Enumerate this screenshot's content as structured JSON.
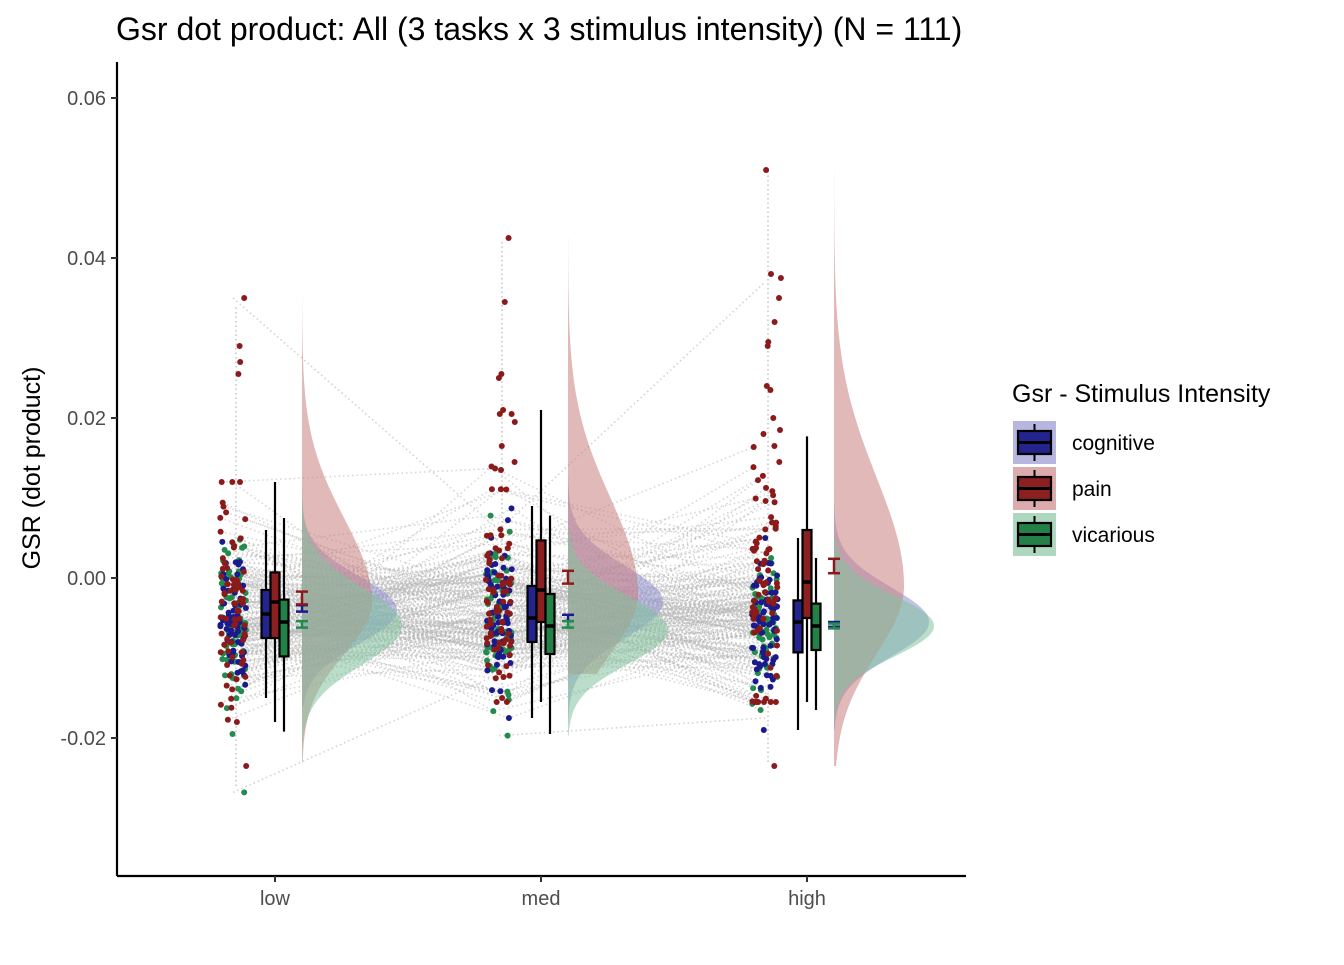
{
  "chart_data": {
    "type": "raincloud",
    "title": "Gsr dot product: All (3 tasks x 3 stimulus intensity) (N = 111)",
    "xlabel": "",
    "ylabel": "GSR  (dot product)",
    "ylim": [
      -0.037,
      0.065
    ],
    "yticks": [
      -0.02,
      0.0,
      0.02,
      0.04,
      0.06
    ],
    "ytick_labels": [
      "-0.02",
      "0.00",
      "0.02",
      "0.04",
      "0.06"
    ],
    "categories": [
      "low",
      "med",
      "high"
    ],
    "grid": false,
    "legend": {
      "title": "Gsr - Stimulus Intensity",
      "position": "right",
      "entries": [
        "cognitive",
        "pain",
        "vicarious"
      ]
    },
    "colors": {
      "cognitive": "#1a1a8c",
      "pain": "#8b1a1a",
      "vicarious": "#228b4e",
      "cognitive_fill": "#24248f",
      "pain_fill": "#8c1f1f",
      "vicarious_fill": "#238046",
      "cognitive_cloud": "#8f8fcf",
      "pain_cloud": "#c97f7f",
      "vicarious_cloud": "#82c29d",
      "subject_lines": "#b5b5b5"
    },
    "series": [
      {
        "name": "cognitive",
        "box": [
          {
            "category": "low",
            "min": -0.015,
            "q1": -0.0075,
            "median": -0.0045,
            "q3": -0.0015,
            "max": 0.006
          },
          {
            "category": "med",
            "min": -0.0175,
            "q1": -0.008,
            "median": -0.005,
            "q3": -0.001,
            "max": 0.009
          },
          {
            "category": "high",
            "min": -0.019,
            "q1": -0.0093,
            "median": -0.0055,
            "q3": -0.0028,
            "max": 0.005
          }
        ],
        "mean_se": [
          {
            "category": "low",
            "mean": -0.0038,
            "se": 0.0004
          },
          {
            "category": "med",
            "mean": -0.005,
            "se": 0.0004
          },
          {
            "category": "high",
            "mean": -0.0058,
            "se": 0.0003
          }
        ],
        "density_peak": [
          -0.004,
          -0.003,
          -0.0055
        ],
        "density_sd": [
          0.0042,
          0.0045,
          0.0043
        ],
        "range": [
          [
            -0.016,
            0.013
          ],
          [
            -0.018,
            0.013
          ],
          [
            -0.019,
            0.011
          ]
        ]
      },
      {
        "name": "pain",
        "box": [
          {
            "category": "low",
            "min": -0.018,
            "q1": -0.0075,
            "median": -0.003,
            "q3": 0.0007,
            "max": 0.012
          },
          {
            "category": "med",
            "min": -0.0155,
            "q1": -0.0055,
            "median": -0.0015,
            "q3": 0.0047,
            "max": 0.021
          },
          {
            "category": "high",
            "min": -0.0155,
            "q1": -0.005,
            "median": -0.0005,
            "q3": 0.006,
            "max": 0.0177
          }
        ],
        "mean_se": [
          {
            "category": "low",
            "mean": -0.0025,
            "se": 0.0008
          },
          {
            "category": "med",
            "mean": 0.0001,
            "se": 0.0008
          },
          {
            "category": "high",
            "mean": 0.0015,
            "se": 0.0009
          }
        ],
        "density_peak": [
          -0.003,
          -0.002,
          -0.001
        ],
        "density_sd": [
          0.0065,
          0.0075,
          0.0085
        ],
        "range": [
          [
            -0.023,
            0.035
          ],
          [
            -0.012,
            0.0425
          ],
          [
            -0.0235,
            0.051
          ]
        ]
      },
      {
        "name": "vicarious",
        "box": [
          {
            "category": "low",
            "min": -0.0192,
            "q1": -0.0098,
            "median": -0.0055,
            "q3": -0.0027,
            "max": 0.0075
          },
          {
            "category": "med",
            "min": -0.0195,
            "q1": -0.0095,
            "median": -0.006,
            "q3": -0.002,
            "max": 0.0078
          },
          {
            "category": "high",
            "min": -0.0165,
            "q1": -0.009,
            "median": -0.006,
            "q3": -0.0032,
            "max": 0.0025
          }
        ],
        "mean_se": [
          {
            "category": "low",
            "mean": -0.0058,
            "se": 0.0004
          },
          {
            "category": "med",
            "mean": -0.0058,
            "se": 0.0004
          },
          {
            "category": "high",
            "mean": -0.006,
            "se": 0.0003
          }
        ],
        "density_peak": [
          -0.006,
          -0.0065,
          -0.006
        ],
        "density_sd": [
          0.0048,
          0.0042,
          0.0038
        ],
        "range": [
          [
            -0.0268,
            0.012
          ],
          [
            -0.0197,
            0.006
          ],
          [
            -0.0175,
            0.005
          ]
        ]
      }
    ],
    "outlier_points": [
      {
        "category": "low",
        "series": "pain",
        "value": 0.035
      },
      {
        "category": "low",
        "series": "pain",
        "value": 0.029
      },
      {
        "category": "low",
        "series": "pain",
        "value": 0.027
      },
      {
        "category": "low",
        "series": "pain",
        "value": 0.0255
      },
      {
        "category": "low",
        "series": "pain",
        "value": 0.012
      },
      {
        "category": "low",
        "series": "pain",
        "value": -0.018
      },
      {
        "category": "low",
        "series": "pain",
        "value": -0.0235
      },
      {
        "category": "low",
        "series": "vicarious",
        "value": -0.0268
      },
      {
        "category": "low",
        "series": "vicarious",
        "value": -0.0195
      },
      {
        "category": "med",
        "series": "pain",
        "value": 0.0425
      },
      {
        "category": "med",
        "series": "pain",
        "value": 0.0345
      },
      {
        "category": "med",
        "series": "pain",
        "value": 0.0255
      },
      {
        "category": "med",
        "series": "pain",
        "value": 0.025
      },
      {
        "category": "med",
        "series": "pain",
        "value": 0.021
      },
      {
        "category": "med",
        "series": "pain",
        "value": 0.0205
      },
      {
        "category": "med",
        "series": "pain",
        "value": 0.0205
      },
      {
        "category": "med",
        "series": "pain",
        "value": 0.0195
      },
      {
        "category": "med",
        "series": "pain",
        "value": 0.0165
      },
      {
        "category": "med",
        "series": "pain",
        "value": 0.0145
      },
      {
        "category": "med",
        "series": "pain",
        "value": 0.0135
      },
      {
        "category": "med",
        "series": "vicarious",
        "value": -0.0197
      },
      {
        "category": "high",
        "series": "pain",
        "value": 0.051
      },
      {
        "category": "high",
        "series": "pain",
        "value": 0.038
      },
      {
        "category": "high",
        "series": "pain",
        "value": 0.0375
      },
      {
        "category": "high",
        "series": "pain",
        "value": 0.035
      },
      {
        "category": "high",
        "series": "pain",
        "value": 0.032
      },
      {
        "category": "high",
        "series": "pain",
        "value": 0.0295
      },
      {
        "category": "high",
        "series": "pain",
        "value": 0.029
      },
      {
        "category": "high",
        "series": "pain",
        "value": 0.024
      },
      {
        "category": "high",
        "series": "pain",
        "value": 0.0235
      },
      {
        "category": "high",
        "series": "pain",
        "value": 0.02
      },
      {
        "category": "high",
        "series": "pain",
        "value": 0.0185
      },
      {
        "category": "high",
        "series": "pain",
        "value": 0.018
      },
      {
        "category": "high",
        "series": "pain",
        "value": 0.0165
      },
      {
        "category": "high",
        "series": "pain",
        "value": 0.0145
      },
      {
        "category": "high",
        "series": "pain",
        "value": -0.0235
      },
      {
        "category": "high",
        "series": "cognitive",
        "value": -0.019
      }
    ]
  }
}
